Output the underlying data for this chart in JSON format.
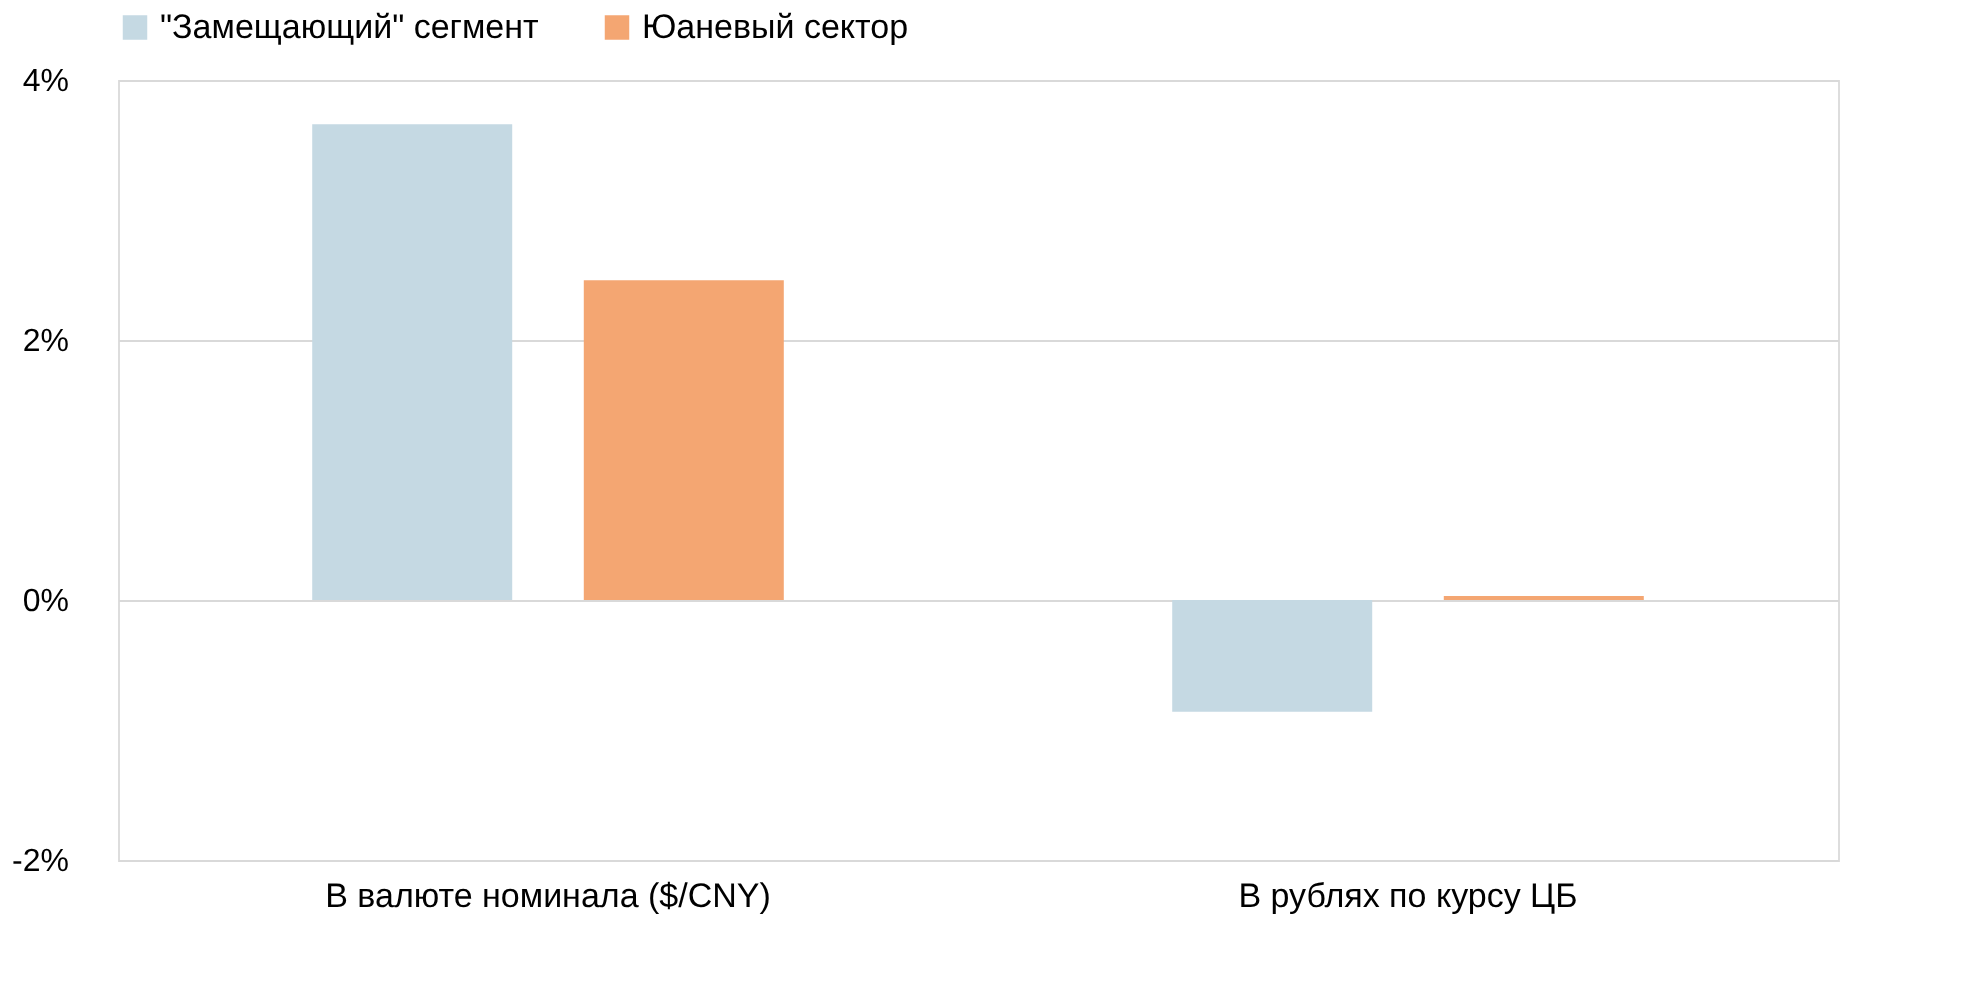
{
  "chart_data": {
    "type": "bar",
    "categories": [
      "В валюте номинала ($/CNY)",
      "В рублях по курсу ЦБ"
    ],
    "series": [
      {
        "name": "\"Замещающий\" сегмент",
        "color": "#c5d9e3",
        "values": [
          3.66,
          -0.86
        ]
      },
      {
        "name": "Юаневый сектор",
        "color": "#f4a672",
        "values": [
          2.46,
          0.03
        ]
      }
    ],
    "ylim": [
      -2,
      4
    ],
    "yticks": [
      {
        "value": -2,
        "label": "-2%"
      },
      {
        "value": 0,
        "label": "0%"
      },
      {
        "value": 2,
        "label": "2%"
      },
      {
        "value": 4,
        "label": "4%"
      }
    ],
    "grid": "y",
    "legend": "top"
  }
}
